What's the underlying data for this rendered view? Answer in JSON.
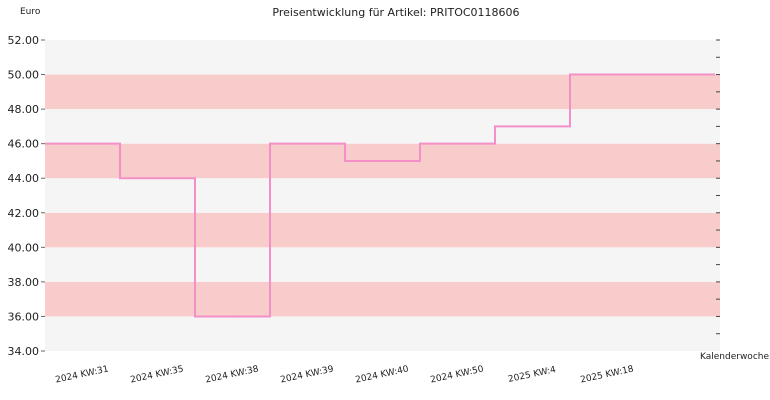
{
  "chart_data": {
    "type": "line",
    "step": true,
    "title": "Preisentwicklung für Artikel: PRITOC0118606",
    "ylabel": "Euro",
    "xlabel": "Kalenderwoche",
    "ylim": [
      34,
      52
    ],
    "yticks": [
      "34.00",
      "36.00",
      "38.00",
      "40.00",
      "42.00",
      "44.00",
      "46.00",
      "48.00",
      "50.00",
      "52.00"
    ],
    "categories": [
      "2024 KW:31",
      "2024 KW:35",
      "2024 KW:38",
      "2024 KW:39",
      "2024 KW:40",
      "2024 KW:50",
      "2025 KW:4",
      "2025 KW:18"
    ],
    "series": [
      {
        "values": [
          46,
          44,
          36,
          46,
          45,
          46,
          47,
          50
        ]
      }
    ],
    "band_colors": [
      "#f9cccc",
      "#f5f5f5"
    ],
    "line_color": "#f48fc7",
    "grid": false,
    "legend": "none"
  }
}
